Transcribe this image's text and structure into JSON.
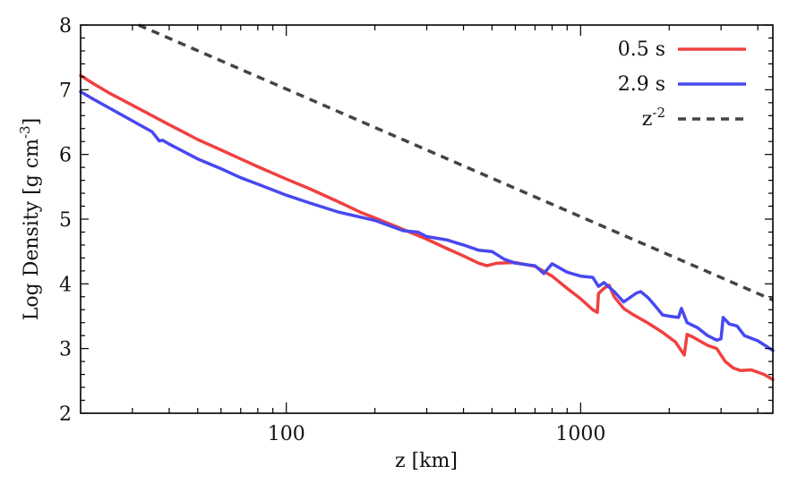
{
  "chart_data": {
    "type": "line",
    "title": "",
    "xlabel": "z [km]",
    "ylabel": "Log Density [g cm-3]",
    "ylabel_parts": {
      "main": "Log Density [g cm",
      "sup": "-3",
      "close": "]"
    },
    "xscale": "log",
    "xlim": [
      20,
      4500
    ],
    "ylim": [
      2,
      8
    ],
    "x_ticks": [
      100,
      1000
    ],
    "x_tick_labels": [
      "100",
      "1000"
    ],
    "y_ticks": [
      2,
      3,
      4,
      5,
      6,
      7,
      8
    ],
    "y_tick_labels": [
      "2",
      "3",
      "4",
      "5",
      "6",
      "7",
      "8"
    ],
    "grid": false,
    "legend_position": "top-right",
    "series": [
      {
        "name": "0.5 s",
        "color": "#f04040",
        "style": "solid",
        "points": [
          [
            20,
            7.22
          ],
          [
            22,
            7.1
          ],
          [
            25,
            6.95
          ],
          [
            30,
            6.76
          ],
          [
            35,
            6.6
          ],
          [
            40,
            6.46
          ],
          [
            45,
            6.34
          ],
          [
            50,
            6.23
          ],
          [
            60,
            6.07
          ],
          [
            70,
            5.93
          ],
          [
            80,
            5.81
          ],
          [
            100,
            5.62
          ],
          [
            120,
            5.47
          ],
          [
            150,
            5.27
          ],
          [
            180,
            5.1
          ],
          [
            200,
            5.02
          ],
          [
            250,
            4.84
          ],
          [
            300,
            4.69
          ],
          [
            350,
            4.55
          ],
          [
            400,
            4.43
          ],
          [
            450,
            4.32
          ],
          [
            480,
            4.28
          ],
          [
            520,
            4.32
          ],
          [
            600,
            4.33
          ],
          [
            700,
            4.27
          ],
          [
            800,
            4.12
          ],
          [
            900,
            3.93
          ],
          [
            1000,
            3.77
          ],
          [
            1100,
            3.6
          ],
          [
            1140,
            3.56
          ],
          [
            1150,
            3.85
          ],
          [
            1200,
            3.93
          ],
          [
            1250,
            3.98
          ],
          [
            1300,
            3.8
          ],
          [
            1400,
            3.62
          ],
          [
            1500,
            3.53
          ],
          [
            1700,
            3.39
          ],
          [
            1900,
            3.25
          ],
          [
            2100,
            3.1
          ],
          [
            2250,
            2.9
          ],
          [
            2300,
            3.22
          ],
          [
            2400,
            3.18
          ],
          [
            2700,
            3.05
          ],
          [
            2900,
            3.0
          ],
          [
            3100,
            2.8
          ],
          [
            3300,
            2.7
          ],
          [
            3500,
            2.66
          ],
          [
            3800,
            2.67
          ],
          [
            4200,
            2.6
          ],
          [
            4500,
            2.52
          ]
        ]
      },
      {
        "name": "2.9 s",
        "color": "#4848f0",
        "style": "solid",
        "points": [
          [
            20,
            6.97
          ],
          [
            22,
            6.86
          ],
          [
            25,
            6.72
          ],
          [
            30,
            6.52
          ],
          [
            35,
            6.35
          ],
          [
            37,
            6.21
          ],
          [
            38,
            6.22
          ],
          [
            40,
            6.16
          ],
          [
            45,
            6.04
          ],
          [
            50,
            5.93
          ],
          [
            60,
            5.78
          ],
          [
            70,
            5.64
          ],
          [
            80,
            5.54
          ],
          [
            100,
            5.37
          ],
          [
            120,
            5.25
          ],
          [
            150,
            5.11
          ],
          [
            200,
            4.98
          ],
          [
            250,
            4.82
          ],
          [
            280,
            4.8
          ],
          [
            300,
            4.73
          ],
          [
            350,
            4.68
          ],
          [
            400,
            4.6
          ],
          [
            450,
            4.52
          ],
          [
            500,
            4.5
          ],
          [
            550,
            4.38
          ],
          [
            600,
            4.32
          ],
          [
            700,
            4.28
          ],
          [
            750,
            4.16
          ],
          [
            800,
            4.31
          ],
          [
            900,
            4.18
          ],
          [
            1000,
            4.12
          ],
          [
            1100,
            4.1
          ],
          [
            1150,
            3.96
          ],
          [
            1200,
            4.02
          ],
          [
            1300,
            3.88
          ],
          [
            1400,
            3.72
          ],
          [
            1550,
            3.86
          ],
          [
            1600,
            3.88
          ],
          [
            1700,
            3.78
          ],
          [
            1800,
            3.65
          ],
          [
            1900,
            3.52
          ],
          [
            2000,
            3.5
          ],
          [
            2150,
            3.48
          ],
          [
            2200,
            3.62
          ],
          [
            2300,
            3.4
          ],
          [
            2500,
            3.32
          ],
          [
            2700,
            3.2
          ],
          [
            2900,
            3.13
          ],
          [
            3000,
            3.15
          ],
          [
            3050,
            3.48
          ],
          [
            3200,
            3.38
          ],
          [
            3400,
            3.35
          ],
          [
            3600,
            3.2
          ],
          [
            4000,
            3.12
          ],
          [
            4500,
            2.97
          ]
        ]
      },
      {
        "name": "z-2",
        "label_parts": {
          "main": "z",
          "sup": "-2"
        },
        "color": "#444444",
        "style": "dashed",
        "points": [
          [
            31.5,
            8.0
          ],
          [
            4500,
            3.75
          ]
        ]
      }
    ]
  }
}
